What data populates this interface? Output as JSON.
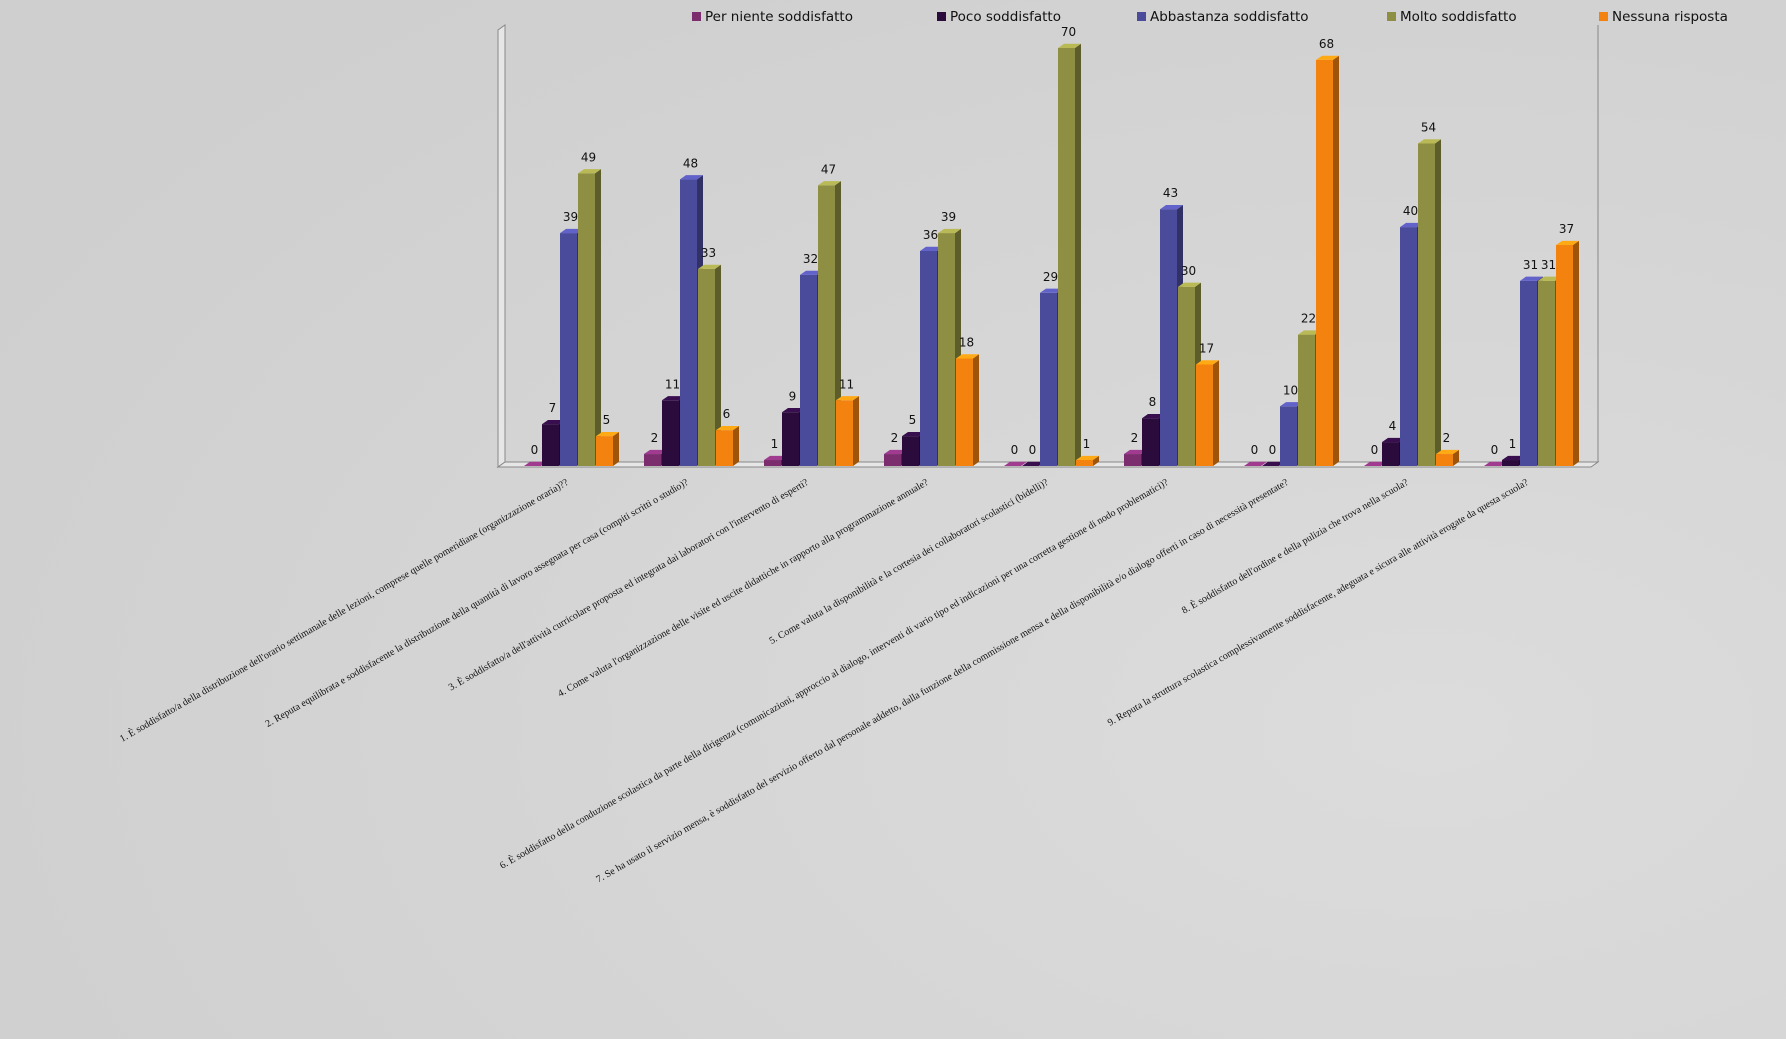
{
  "chart_data": {
    "type": "bar",
    "categories": [
      "1. È soddisfatto/a della distribuzione dell'orario settimanale delle lezioni, comprese quelle pomeridiane (organizzazione oraria)??",
      "2. Reputa equilibrata e soddisfacente la distribuzione della quantità di lavoro assegnata per casa (compiti scritti o studio)?",
      "3. È soddisfatto/a dell'attività curricolare proposta ed integrata dai laboratori con l'intervento di esperti?",
      "4. Come valuta l'organizzazione delle visite ed uscite didattiche in rapporto alla programmazione annuale?",
      "5. Come valuta la disponibilità e la cortesia dei collaboratori scolastici (bidelli)?",
      "6. È soddisfatto della conduzione scolastica da parte della dirigenza (comunicazioni, approccio al dialogo, interventi di vario tipo ed indicazioni per una corretta gestione di nodo problematici)?",
      "7. Se ha usato il servizio mensa, è soddisfatto del servizio offerto dal personale addetto, dalla funzione della commissione mensa e della disponibilità e/o dialogo  offerti in caso di necessità presentate?",
      "8. È soddisfatto dell'ordine e della pulizia che trova nella scuola?",
      "9. Reputa la struttura scolastica complessivamente soddisfacente, adeguata e sicura alle attività erogate da questa scuola?"
    ],
    "series": [
      {
        "name": "Per niente soddisfatto",
        "color": "#7b2d6e",
        "values": [
          0,
          2,
          1,
          2,
          0,
          2,
          0,
          0,
          0
        ]
      },
      {
        "name": "Poco soddisfatto",
        "color": "#2b0b3c",
        "values": [
          7,
          11,
          9,
          5,
          0,
          8,
          0,
          4,
          1
        ]
      },
      {
        "name": "Abbastanza soddisfatto",
        "color": "#4b4b9c",
        "values": [
          39,
          48,
          32,
          36,
          29,
          43,
          10,
          40,
          31
        ]
      },
      {
        "name": "Molto soddisfatto",
        "color": "#8e8f42",
        "values": [
          49,
          33,
          47,
          39,
          70,
          30,
          22,
          54,
          31
        ]
      },
      {
        "name": "Nessuna risposta",
        "color": "#f3820f",
        "values": [
          5,
          6,
          11,
          18,
          1,
          17,
          68,
          2,
          37
        ]
      }
    ],
    "ylim": [
      0,
      72
    ],
    "legend": "top"
  }
}
